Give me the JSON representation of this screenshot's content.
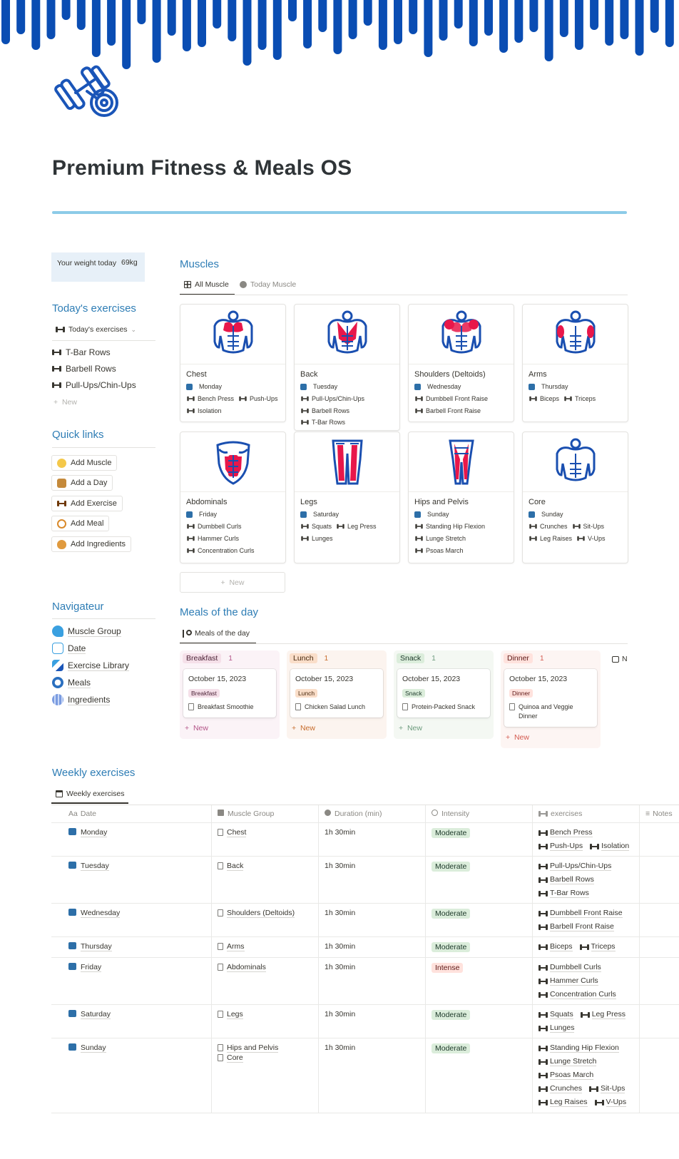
{
  "page": {
    "title": "Premium Fitness & Meals OS",
    "icon": "dumbbell-icon",
    "accent": "#2e7db5",
    "cover_color": "#0a4db3"
  },
  "weight_callout": {
    "label": "Your weight today",
    "value": "69kg"
  },
  "todays_exercises": {
    "heading": "Today's exercises",
    "view": "Today's exercises",
    "items": [
      "T-Bar Rows",
      "Barbell Rows",
      "Pull-Ups/Chin-Ups"
    ],
    "new_label": "New"
  },
  "quick_links": {
    "heading": "Quick links",
    "buttons": [
      "Add Muscle",
      "Add a Day",
      "Add Exercise",
      "Add Meal",
      "Add Ingredients"
    ]
  },
  "navigateur": {
    "heading": "Navigateur",
    "items": [
      "Muscle Group",
      "Date",
      "Exercise Library",
      "Meals",
      "Ingredients"
    ]
  },
  "muscles": {
    "heading": "Muscles",
    "tabs": [
      "All Muscle",
      "Today Muscle"
    ],
    "new_label": "New",
    "cards": [
      {
        "name": "Chest",
        "day": "Monday",
        "exercises": [
          "Bench Press",
          "Push-Ups",
          "Isolation"
        ]
      },
      {
        "name": "Back",
        "day": "Tuesday",
        "exercises": [
          "Pull-Ups/Chin-Ups",
          "Barbell Rows",
          "T-Bar Rows"
        ]
      },
      {
        "name": "Shoulders (Deltoids)",
        "day": "Wednesday",
        "exercises": [
          "Dumbbell Front Raise",
          "Barbell Front Raise"
        ]
      },
      {
        "name": "Arms",
        "day": "Thursday",
        "exercises": [
          "Biceps",
          "Triceps"
        ]
      },
      {
        "name": "Abdominals",
        "day": "Friday",
        "exercises": [
          "Dumbbell Curls",
          "Hammer Curls",
          "Concentration Curls"
        ]
      },
      {
        "name": "Legs",
        "day": "Saturday",
        "exercises": [
          "Squats",
          "Leg Press",
          "Lunges"
        ]
      },
      {
        "name": "Hips and Pelvis",
        "day": "Sunday",
        "exercises": [
          "Standing Hip Flexion",
          "Lunge Stretch",
          "Psoas March"
        ]
      },
      {
        "name": "Core",
        "day": "Sunday",
        "exercises": [
          "Crunches",
          "Sit-Ups",
          "Leg Raises",
          "V-Ups"
        ]
      }
    ]
  },
  "meals": {
    "heading": "Meals of the day",
    "tab": "Meals of the day",
    "new_label": "New",
    "columns": [
      {
        "name": "Breakfast",
        "count": "1",
        "date": "October 15, 2023",
        "tag": "Breakfast",
        "item": "Breakfast Smoothie",
        "bg": "#fbf3f7",
        "tag_bg": "#f5e0e9",
        "tag_color": "#4c2337",
        "accent": "#b35488"
      },
      {
        "name": "Lunch",
        "count": "1",
        "date": "October 15, 2023",
        "tag": "Lunch",
        "item": "Chicken Salad Lunch",
        "bg": "#fcf4ef",
        "tag_bg": "#fadec9",
        "tag_color": "#49290e",
        "accent": "#c76b2a"
      },
      {
        "name": "Snack",
        "count": "1",
        "date": "October 15, 2023",
        "tag": "Snack",
        "item": "Protein-Packed Snack",
        "bg": "#f4f8f3",
        "tag_bg": "#dbeddb",
        "tag_color": "#1c3829",
        "accent": "#6c9b7d"
      },
      {
        "name": "Dinner",
        "count": "1",
        "date": "October 15, 2023",
        "tag": "Dinner",
        "item": "Quinoa and Veggie Dinner",
        "bg": "#fdf5f3",
        "tag_bg": "#ffe2dd",
        "tag_color": "#5d1715",
        "accent": "#d45a4f"
      }
    ],
    "hidden_column_initial": "N"
  },
  "weekly": {
    "heading": "Weekly exercises",
    "tab": "Weekly exercises",
    "columns": [
      "Date",
      "Muscle Group",
      "Duration (min)",
      "Intensity",
      "exercises",
      "Notes"
    ],
    "rows": [
      {
        "date": "Monday",
        "group": [
          "Chest"
        ],
        "duration": "1h 30min",
        "intensity": "Moderate",
        "ex": [
          [
            "Bench Press"
          ],
          [
            "Push-Ups",
            "Isolation"
          ]
        ]
      },
      {
        "date": "Tuesday",
        "group": [
          "Back"
        ],
        "duration": "1h 30min",
        "intensity": "Moderate",
        "ex": [
          [
            "Pull-Ups/Chin-Ups"
          ],
          [
            "Barbell Rows"
          ],
          [
            "T-Bar Rows"
          ]
        ]
      },
      {
        "date": "Wednesday",
        "group": [
          "Shoulders (Deltoids)"
        ],
        "duration": "1h 30min",
        "intensity": "Moderate",
        "ex": [
          [
            "Dumbbell Front Raise"
          ],
          [
            "Barbell Front Raise"
          ]
        ]
      },
      {
        "date": "Thursday",
        "group": [
          "Arms"
        ],
        "duration": "1h 30min",
        "intensity": "Moderate",
        "ex": [
          [
            "Biceps",
            "Triceps"
          ]
        ]
      },
      {
        "date": "Friday",
        "group": [
          "Abdominals"
        ],
        "duration": "1h 30min",
        "intensity": "Intense",
        "ex": [
          [
            "Dumbbell Curls"
          ],
          [
            "Hammer Curls"
          ],
          [
            "Concentration Curls"
          ]
        ]
      },
      {
        "date": "Saturday",
        "group": [
          "Legs"
        ],
        "duration": "1h 30min",
        "intensity": "Moderate",
        "ex": [
          [
            "Squats",
            "Leg Press"
          ],
          [
            "Lunges"
          ]
        ]
      },
      {
        "date": "Sunday",
        "group": [
          "Hips and Pelvis",
          "Core"
        ],
        "duration": "1h 30min",
        "intensity": "Moderate",
        "ex": [
          [
            "Standing Hip Flexion"
          ],
          [
            "Lunge Stretch"
          ],
          [
            "Psoas March"
          ],
          [
            "Crunches",
            "Sit-Ups"
          ],
          [
            "Leg Raises",
            "V-Ups"
          ]
        ]
      }
    ]
  }
}
